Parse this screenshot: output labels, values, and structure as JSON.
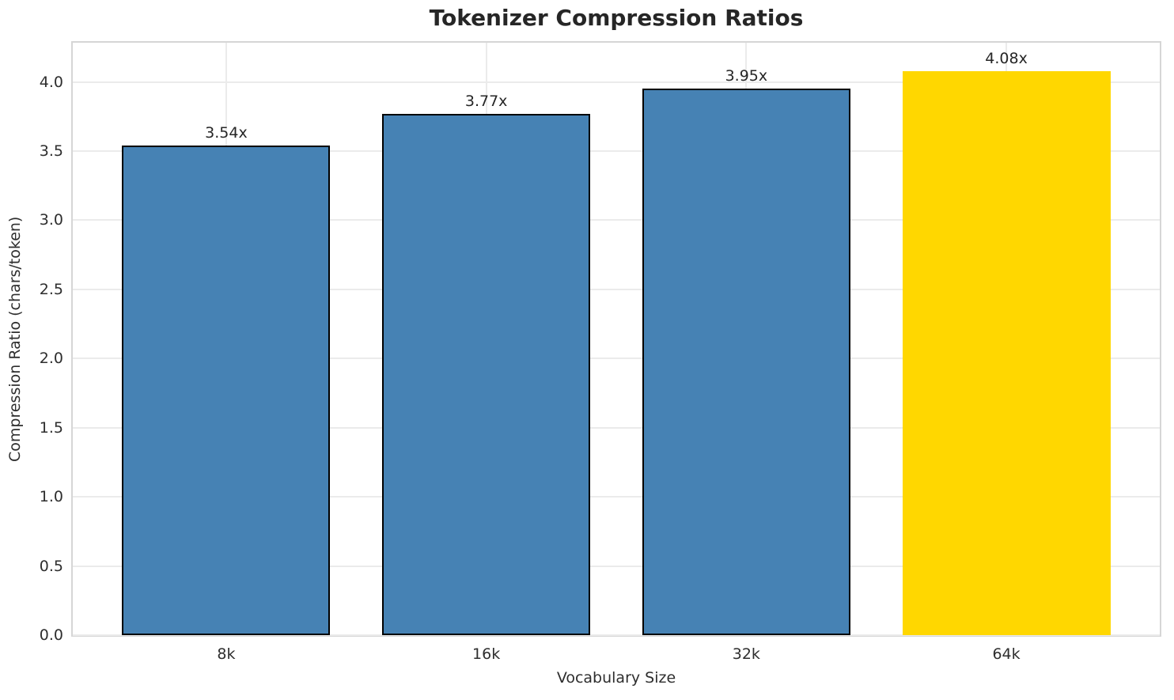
{
  "title": "Tokenizer Compression Ratios",
  "chart_data": {
    "type": "bar",
    "title": "Tokenizer Compression Ratios",
    "xlabel": "Vocabulary Size",
    "ylabel": "Compression Ratio (chars/token)",
    "categories": [
      "8k",
      "16k",
      "32k",
      "64k"
    ],
    "values": [
      3.54,
      3.77,
      3.95,
      4.08
    ],
    "value_labels": [
      "3.54x",
      "3.77x",
      "3.95x",
      "4.08x"
    ],
    "yticks": [
      0.0,
      0.5,
      1.0,
      1.5,
      2.0,
      2.5,
      3.0,
      3.5,
      4.0
    ],
    "ytick_labels": [
      "0.0",
      "0.5",
      "1.0",
      "1.5",
      "2.0",
      "2.5",
      "3.0",
      "3.5",
      "4.0"
    ],
    "ylim": [
      0,
      4.284
    ],
    "xlim": [
      -0.59,
      3.59
    ],
    "bar_width": 0.8,
    "grid": true,
    "legend": "none",
    "bar_colors": [
      "#4682B4",
      "#4682B4",
      "#4682B4",
      "#FFD700"
    ],
    "bar_edge_colors": [
      "#000000",
      "#000000",
      "#000000",
      "none"
    ],
    "highlight_index": 3,
    "colors": {
      "bar_default": "#4682B4",
      "bar_highlight": "#FFD700",
      "bar_edge": "#000000",
      "grid": "#ebebeb",
      "spine": "#d6d6d6",
      "text": "#262626"
    }
  }
}
